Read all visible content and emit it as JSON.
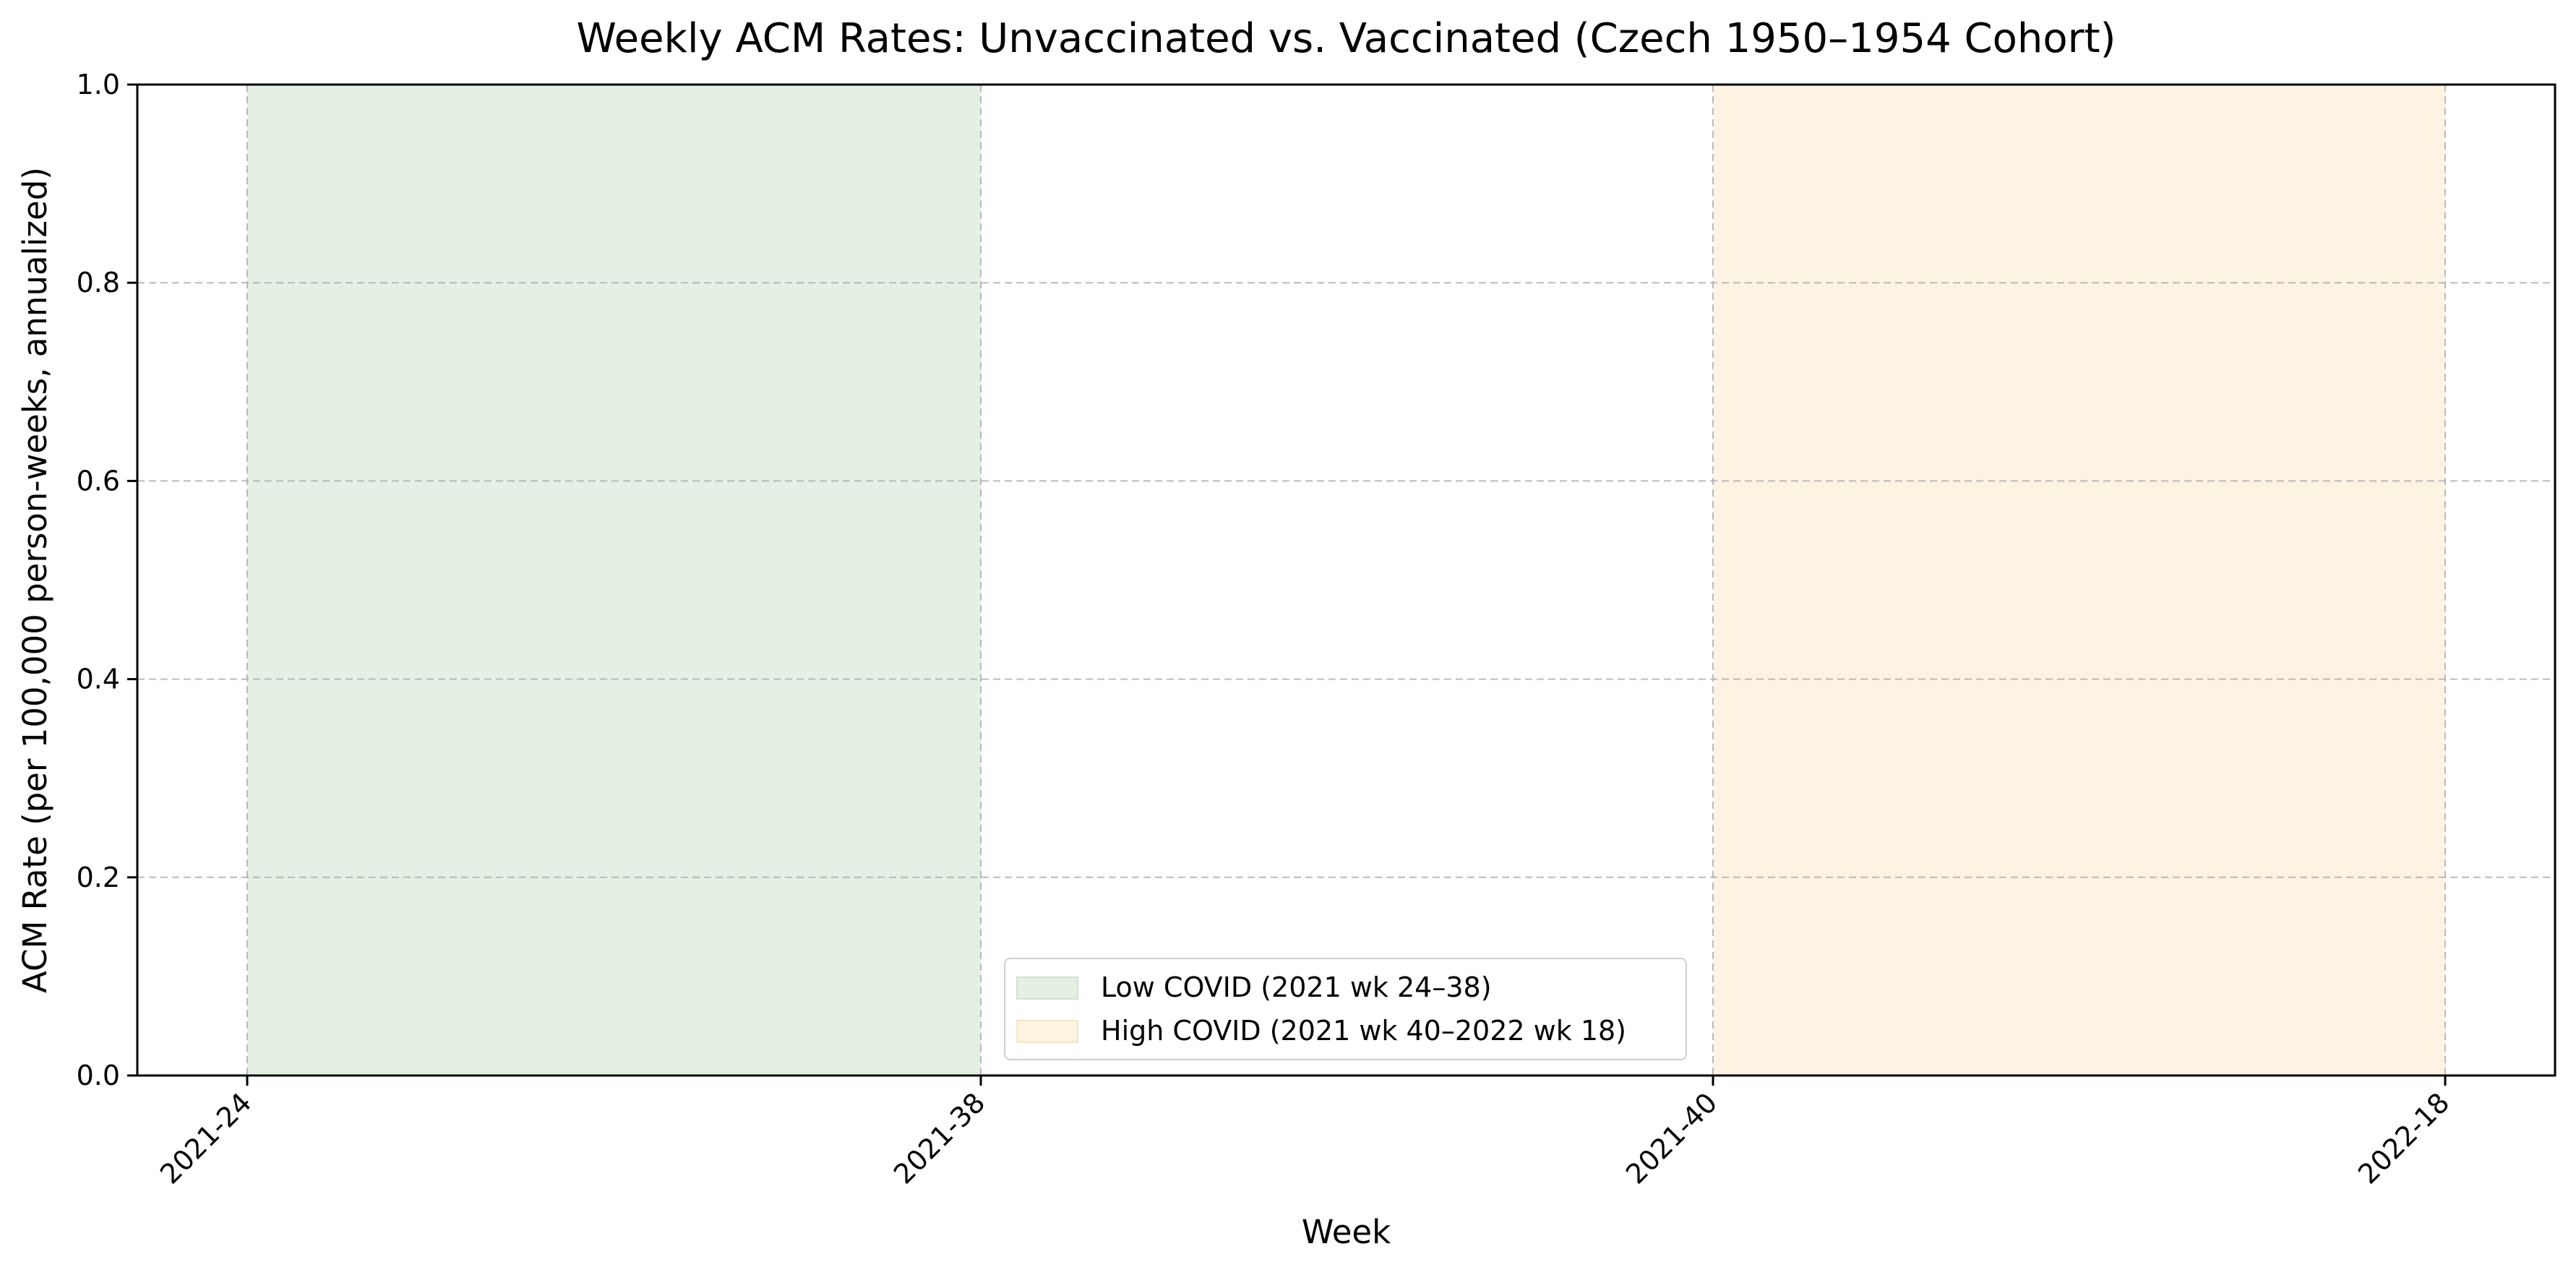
{
  "chart_data": {
    "type": "area",
    "title": "Weekly ACM Rates: Unvaccinated vs. Vaccinated (Czech 1950–1954 Cohort)",
    "xlabel": "Week",
    "ylabel": "ACM Rate (per 100,000 person-weeks, annualized)",
    "x_ticks": [
      "2021-24",
      "2021-38",
      "2021-40",
      "2022-18"
    ],
    "ylim": [
      0.0,
      1.0
    ],
    "y_ticks": [
      "0.0",
      "0.2",
      "0.4",
      "0.6",
      "0.8",
      "1.0"
    ],
    "grid": true,
    "legend_position": "lower-center",
    "regions": [
      {
        "name": "Low COVID (2021 wk 24–38)",
        "from": "2021-24",
        "to": "2021-38",
        "color": "#e4f0e4"
      },
      {
        "name": "High COVID (2021 wk 40–2022 wk 18)",
        "from": "2021-40",
        "to": "2022-18",
        "color": "#fdf3e3"
      }
    ]
  }
}
